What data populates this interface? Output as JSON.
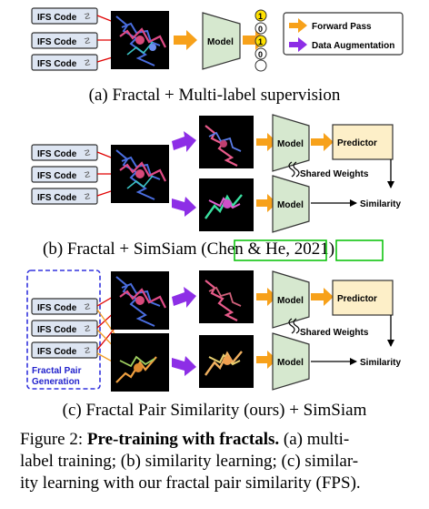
{
  "ifs_label": "IFS Code",
  "model_label": "Model",
  "predictor_label": "Predictor",
  "shared_weights_label": "Shared Weights",
  "similarity_label": "Similarity",
  "legend": {
    "forward": "Forward Pass",
    "augment": "Data Augmentation"
  },
  "label_bits": [
    "1",
    "0",
    "1",
    "0"
  ],
  "fractal_pair_label_line1": "Fractal Pair",
  "fractal_pair_label_line2": "Generation",
  "panel_a_caption": "(a) Fractal + Multi-label supervision",
  "panel_b_caption_prefix": "(b) Fractal + SimSiam (",
  "panel_b_cite_author": "Chen & He",
  "panel_b_cite_sep": ", ",
  "panel_b_cite_year": "2021",
  "panel_b_caption_suffix": ")",
  "panel_c_caption": "(c) Fractal Pair Similarity (ours) + SimSiam",
  "figure_caption": {
    "label": "Figure 2:",
    "bold": "Pre-training with fractals.",
    "line1_rest": "(a) multi-",
    "line2": "label training; (b) similarity learning; (c) similar-",
    "line3": "ity learning with our fractal pair similarity (FPS)."
  },
  "colors": {
    "ifs_fill": "#dde5f2",
    "model_fill": "#d6e8cf",
    "predictor_fill": "#fdefc8",
    "forward_arrow": "#f7a11a",
    "augment_arrow": "#8d2ee6",
    "bit_fill": "#ffe100",
    "red_arrow": "#e00000",
    "orange_arrow": "#f29b22",
    "dash_border": "#3333dd",
    "cite_box": "#00c000"
  }
}
